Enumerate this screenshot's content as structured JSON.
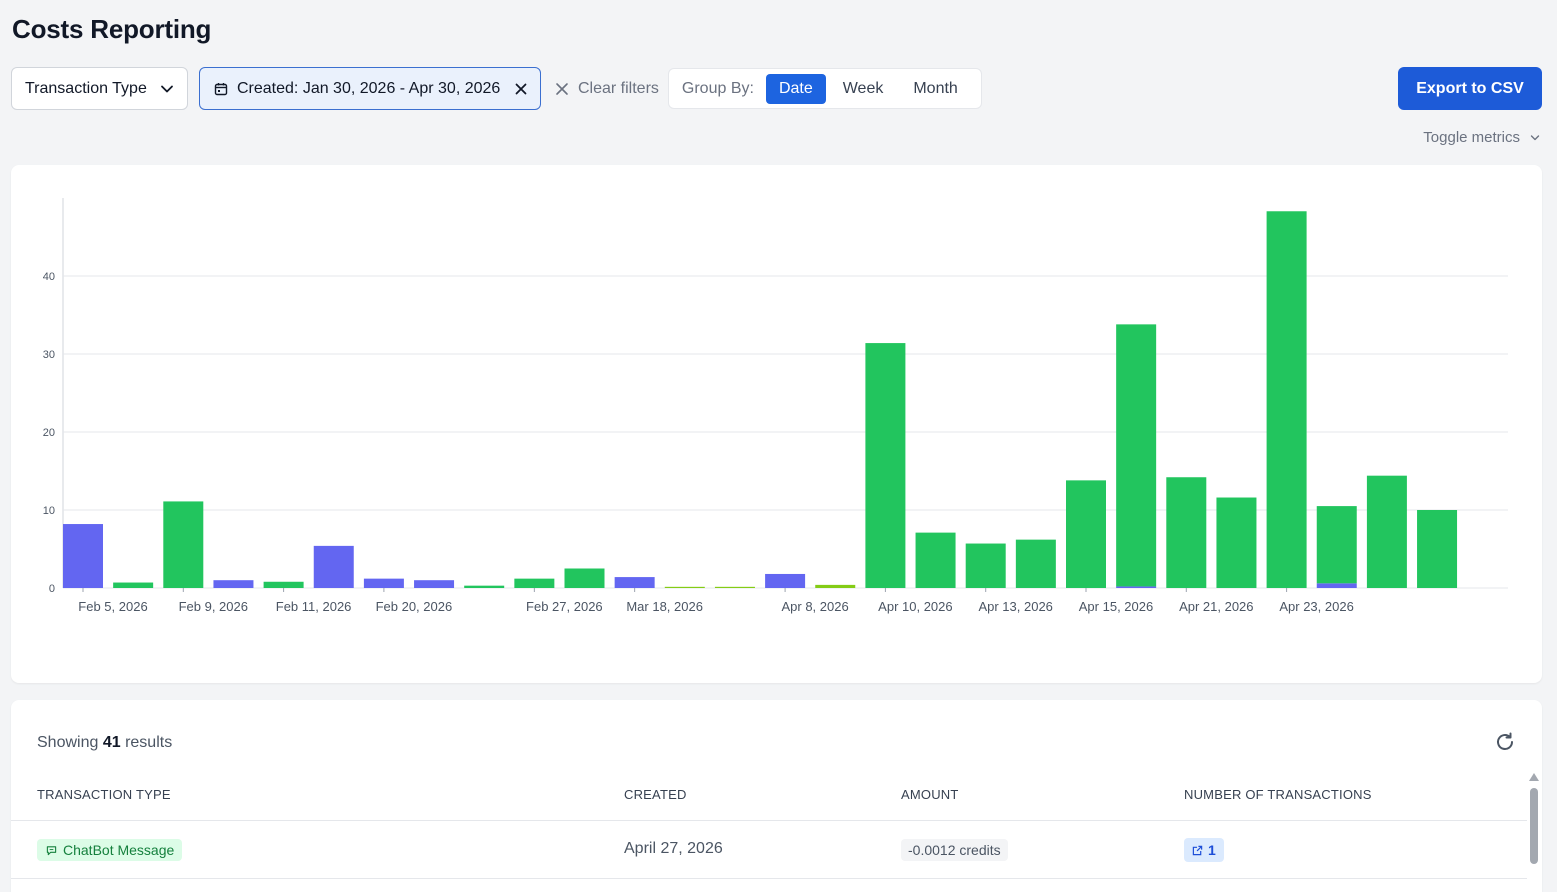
{
  "page": {
    "title": "Costs Reporting"
  },
  "filters": {
    "transaction_type_label": "Transaction Type",
    "date_chip_label": "Created: Jan 30, 2026 - Apr 30, 2026",
    "clear_label": "Clear filters",
    "group_by_label": "Group By:",
    "group_by_options": [
      "Date",
      "Week",
      "Month"
    ],
    "group_by_selected": "Date"
  },
  "actions": {
    "export_label": "Export to CSV",
    "toggle_metrics_label": "Toggle metrics"
  },
  "icons": {
    "chevron": "chevron-down-icon",
    "calendar": "calendar-icon",
    "close": "close-icon",
    "refresh": "refresh-icon",
    "message": "chat-message-icon",
    "external": "external-link-icon"
  },
  "colors": {
    "primary": "#1d5bd8",
    "series_blue": "#6366f1",
    "series_green": "#22c55e",
    "series_lime": "#84cc16"
  },
  "chart_data": {
    "type": "bar",
    "stacked": true,
    "ylim": [
      0,
      50
    ],
    "yticks": [
      0,
      10,
      20,
      30,
      40
    ],
    "grid": true,
    "categories": [
      "Feb 5, 2026",
      "",
      "Feb 9, 2026",
      "",
      "Feb 11, 2026",
      "",
      "Feb 20, 2026",
      "",
      "",
      "Feb 27, 2026",
      "",
      "Mar 18, 2026",
      "",
      "",
      "Apr 8, 2026",
      "",
      "Apr 10, 2026",
      "",
      "Apr 13, 2026",
      "",
      "Apr 15, 2026",
      "",
      "Apr 21, 2026",
      "",
      "Apr 23, 2026",
      "",
      "",
      ""
    ],
    "series": [
      {
        "color": "#6366f1",
        "values": [
          8.2,
          0,
          0,
          1.0,
          0,
          5.4,
          1.2,
          1.0,
          0,
          0,
          0,
          1.4,
          0,
          0,
          1.8,
          0,
          0,
          0,
          0,
          0,
          0,
          0.2,
          0,
          0,
          0,
          0.6,
          0,
          0
        ]
      },
      {
        "color": "#22c55e",
        "values": [
          0,
          0.7,
          11.1,
          0,
          0.8,
          0,
          0,
          0,
          0.3,
          1.2,
          2.5,
          0,
          0,
          0,
          0,
          0,
          31.4,
          7.1,
          5.7,
          6.2,
          13.8,
          33.6,
          14.2,
          11.6,
          48.3,
          9.9,
          14.4,
          10.0
        ]
      },
      {
        "color": "#84cc16",
        "values": [
          0,
          0,
          0,
          0,
          0,
          0,
          0,
          0,
          0,
          0,
          0,
          0,
          0.15,
          0.15,
          0,
          0.4,
          0,
          0,
          0,
          0,
          0,
          0,
          0,
          0,
          0,
          0,
          0,
          0
        ]
      }
    ]
  },
  "table": {
    "showing_prefix": "Showing",
    "count": "41",
    "showing_suffix": "results",
    "headers": [
      "TRANSACTION TYPE",
      "CREATED",
      "AMOUNT",
      "NUMBER OF TRANSACTIONS"
    ],
    "rows": [
      {
        "type": "ChatBot Message",
        "created": "April 27, 2026",
        "amount": "-0.0012 credits",
        "count": "1"
      }
    ]
  }
}
